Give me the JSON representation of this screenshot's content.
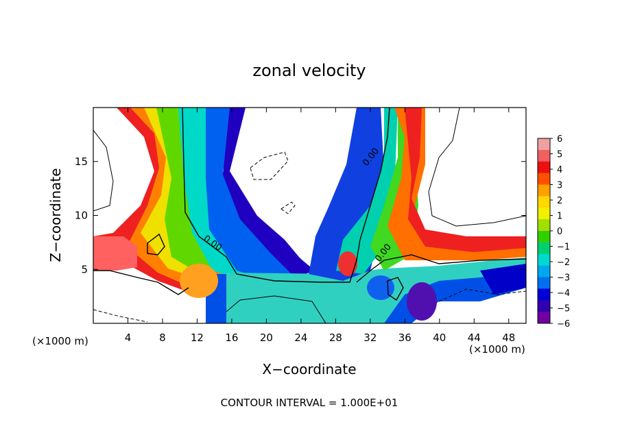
{
  "chart_data": {
    "type": "heatmap",
    "title": "zonal velocity",
    "xlabel": "X−coordinate",
    "ylabel": "Z−coordinate",
    "x_unit_left": "(×1000 m)",
    "x_unit_right": "(×1000 m)",
    "footer": "CONTOUR INTERVAL = 1.000E+01",
    "contour_label": "0.00",
    "xlim": [
      0,
      50
    ],
    "ylim": [
      0,
      20
    ],
    "x_ticks": [
      4,
      8,
      12,
      16,
      20,
      24,
      28,
      32,
      36,
      40,
      44,
      48
    ],
    "y_ticks": [
      5,
      10,
      15
    ],
    "colorbar": {
      "range": [
        -6,
        6
      ],
      "levels": [
        6,
        5,
        4,
        3,
        2,
        1,
        0,
        -1,
        -2,
        -3,
        -4,
        -5,
        -6
      ],
      "labels": [
        "6",
        "5",
        "4",
        "3",
        "2",
        "1",
        "0",
        "−1",
        "−2",
        "−3",
        "−4",
        "−5",
        "−6"
      ],
      "colors": [
        "#f0a0a0",
        "#f06060",
        "#ee1010",
        "#ff5000",
        "#ffa000",
        "#ffd800",
        "#f0f000",
        "#a0e000",
        "#30d000",
        "#00d070",
        "#00d8d0",
        "#00a8f0",
        "#0070f0",
        "#0000d8",
        "#3000b0",
        "#7000a0"
      ]
    },
    "field_anchors": [
      {
        "x": 6,
        "z": 15,
        "u": 5
      },
      {
        "x": 8,
        "z": 10,
        "u": 3
      },
      {
        "x": 10,
        "z": 15,
        "u": 1
      },
      {
        "x": 12,
        "z": 14,
        "u": -1
      },
      {
        "x": 16,
        "z": 10,
        "u": -3
      },
      {
        "x": 22,
        "z": 5,
        "u": -5
      },
      {
        "x": 28,
        "z": 12,
        "u": -5
      },
      {
        "x": 31,
        "z": 14,
        "u": -2
      },
      {
        "x": 33,
        "z": 12,
        "u": 0
      },
      {
        "x": 36,
        "z": 12,
        "u": 3
      },
      {
        "x": 40,
        "z": 6,
        "u": 2
      },
      {
        "x": 46,
        "z": 5,
        "u": -4
      },
      {
        "x": 12,
        "z": 3,
        "u": 2
      },
      {
        "x": 30,
        "z": 6,
        "u": 4
      },
      {
        "x": 33,
        "z": 3,
        "u": -3
      }
    ]
  }
}
